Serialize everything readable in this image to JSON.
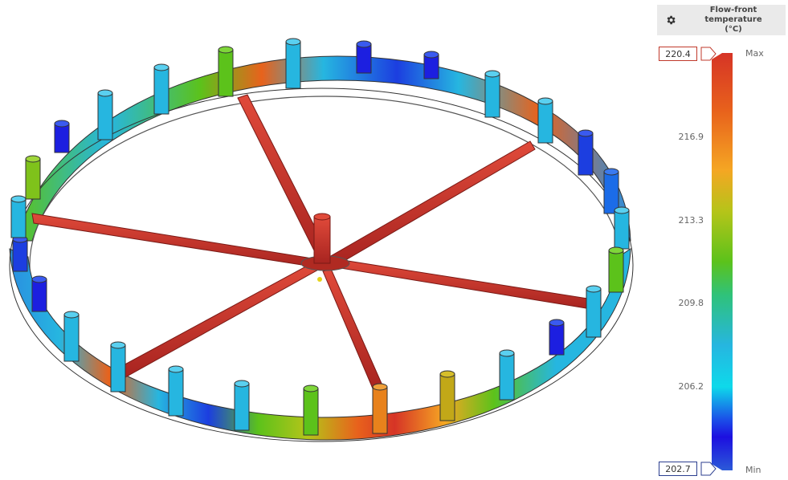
{
  "legend": {
    "title_line1": "Flow-front temperature",
    "title_line2": "(°C)",
    "max_value": "220.4",
    "min_value": "202.7",
    "max_label": "Max",
    "min_label": "Min",
    "ticks": [
      "216.9",
      "213.3",
      "209.8",
      "206.2"
    ],
    "icon": "gear-icon"
  },
  "colors": {
    "hot": "#d63426",
    "orange": "#e8621c",
    "yellow": "#f5a623",
    "green": "#5cc21b",
    "cyan": "#26b6e0",
    "blue": "#1c0fe0",
    "runner": "#c8302a"
  }
}
